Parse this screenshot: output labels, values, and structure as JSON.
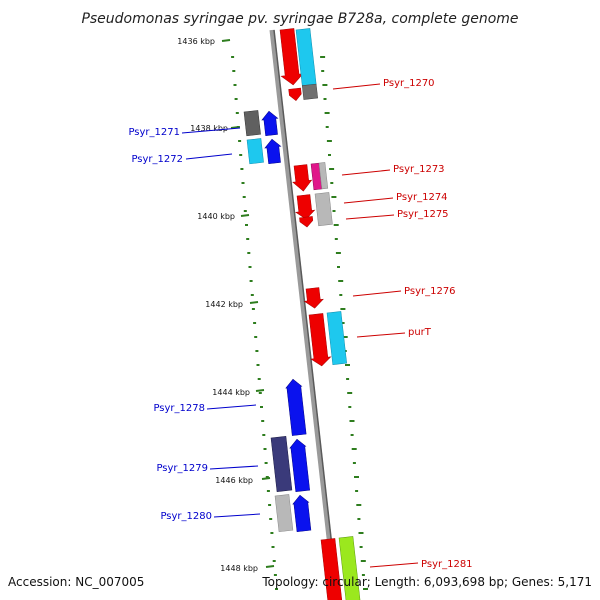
{
  "title": "Pseudomonas syringae pv. syringae B728a, complete genome",
  "footer": {
    "accession": "Accession: NC_007005",
    "topology": "Topology: circular; Length: 6,093,698 bp; Genes: 5,171"
  },
  "colors": {
    "backbone": "#808080",
    "tick": "#2e7d1e",
    "label_left": "#0000cc",
    "label_right": "#cc0000",
    "red": "#ee0000",
    "cyan": "#1ec8ee",
    "blue": "#0a12ee",
    "gray": "#b8b8b8",
    "darkgray": "#606060",
    "magenta": "#e0168a",
    "navy": "#3a3a7a",
    "lime": "#9be81e"
  },
  "ticks": [
    {
      "label": "1436 kbp"
    },
    {
      "label": "1438 kbp"
    },
    {
      "label": "1440 kbp"
    },
    {
      "label": "1442 kbp"
    },
    {
      "label": "1444 kbp"
    },
    {
      "label": "1446 kbp"
    },
    {
      "label": "1448 kbp"
    }
  ],
  "genes_left": [
    {
      "label": "Psyr_1271"
    },
    {
      "label": "Psyr_1272"
    },
    {
      "label": "Psyr_1278"
    },
    {
      "label": "Psyr_1279"
    },
    {
      "label": "Psyr_1280"
    }
  ],
  "genes_right": [
    {
      "label": "Psyr_1270"
    },
    {
      "label": "Psyr_1273"
    },
    {
      "label": "Psyr_1274"
    },
    {
      "label": "Psyr_1275"
    },
    {
      "label": "Psyr_1276"
    },
    {
      "label": "purT"
    },
    {
      "label": "Psyr_1281"
    }
  ]
}
